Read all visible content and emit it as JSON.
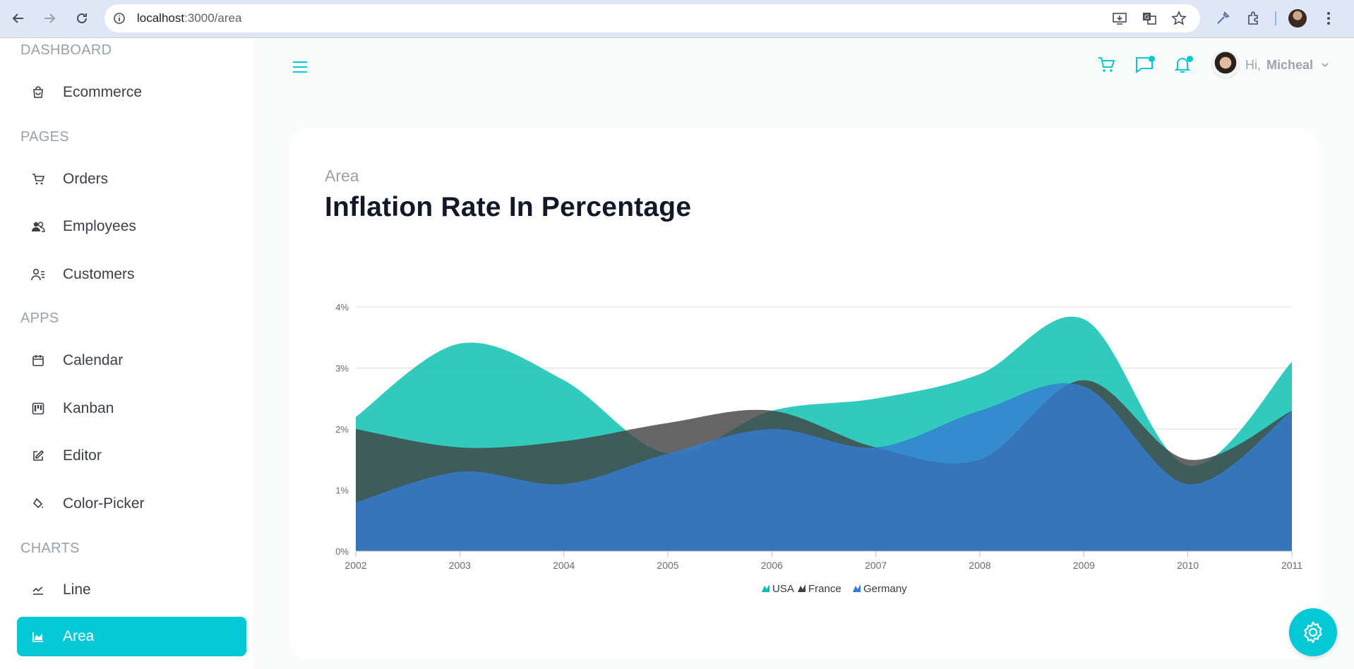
{
  "browser": {
    "url_host": "localhost",
    "url_path": ":3000/area"
  },
  "sidebar": {
    "sections": [
      {
        "title": "DASHBOARD",
        "items": [
          {
            "label": "Ecommerce",
            "icon": "shopping-bag-icon"
          }
        ]
      },
      {
        "title": "PAGES",
        "items": [
          {
            "label": "Orders",
            "icon": "cart-icon"
          },
          {
            "label": "Employees",
            "icon": "users-icon"
          },
          {
            "label": "Customers",
            "icon": "user-list-icon"
          }
        ]
      },
      {
        "title": "APPS",
        "items": [
          {
            "label": "Calendar",
            "icon": "calendar-icon"
          },
          {
            "label": "Kanban",
            "icon": "kanban-icon"
          },
          {
            "label": "Editor",
            "icon": "edit-icon"
          },
          {
            "label": "Color-Picker",
            "icon": "color-fill-icon"
          }
        ]
      },
      {
        "title": "CHARTS",
        "items": [
          {
            "label": "Line",
            "icon": "line-chart-icon"
          },
          {
            "label": "Area",
            "icon": "area-chart-icon",
            "active": true
          }
        ]
      }
    ]
  },
  "header": {
    "greeting": "Hi,",
    "user_name": "Micheal"
  },
  "card": {
    "subtitle": "Area",
    "title": "Inflation Rate In Percentage"
  },
  "colors": {
    "accent": "#03c9d7",
    "usa": "#00bdae",
    "france": "#404041",
    "germany": "#357cd2"
  },
  "chart_data": {
    "type": "area",
    "x": [
      2002,
      2003,
      2004,
      2005,
      2006,
      2007,
      2008,
      2009,
      2010,
      2011
    ],
    "x_tick_labels": [
      "2002",
      "2003",
      "2004",
      "2005",
      "2006",
      "2007",
      "2008",
      "2009",
      "2010",
      "2011"
    ],
    "y_tick_labels": [
      "0%",
      "1%",
      "2%",
      "3%",
      "4%"
    ],
    "ylim": [
      0,
      4
    ],
    "grid": true,
    "legend_position": "bottom-center",
    "series": [
      {
        "name": "USA",
        "values": [
          2.2,
          3.4,
          2.8,
          1.6,
          2.3,
          2.5,
          2.9,
          3.8,
          1.4,
          3.1
        ]
      },
      {
        "name": "France",
        "values": [
          2.0,
          1.7,
          1.8,
          2.1,
          2.3,
          1.7,
          1.5,
          2.8,
          1.5,
          2.3
        ]
      },
      {
        "name": "Germany",
        "values": [
          0.8,
          1.3,
          1.1,
          1.6,
          2.0,
          1.7,
          2.3,
          2.7,
          1.1,
          2.3
        ]
      }
    ]
  }
}
